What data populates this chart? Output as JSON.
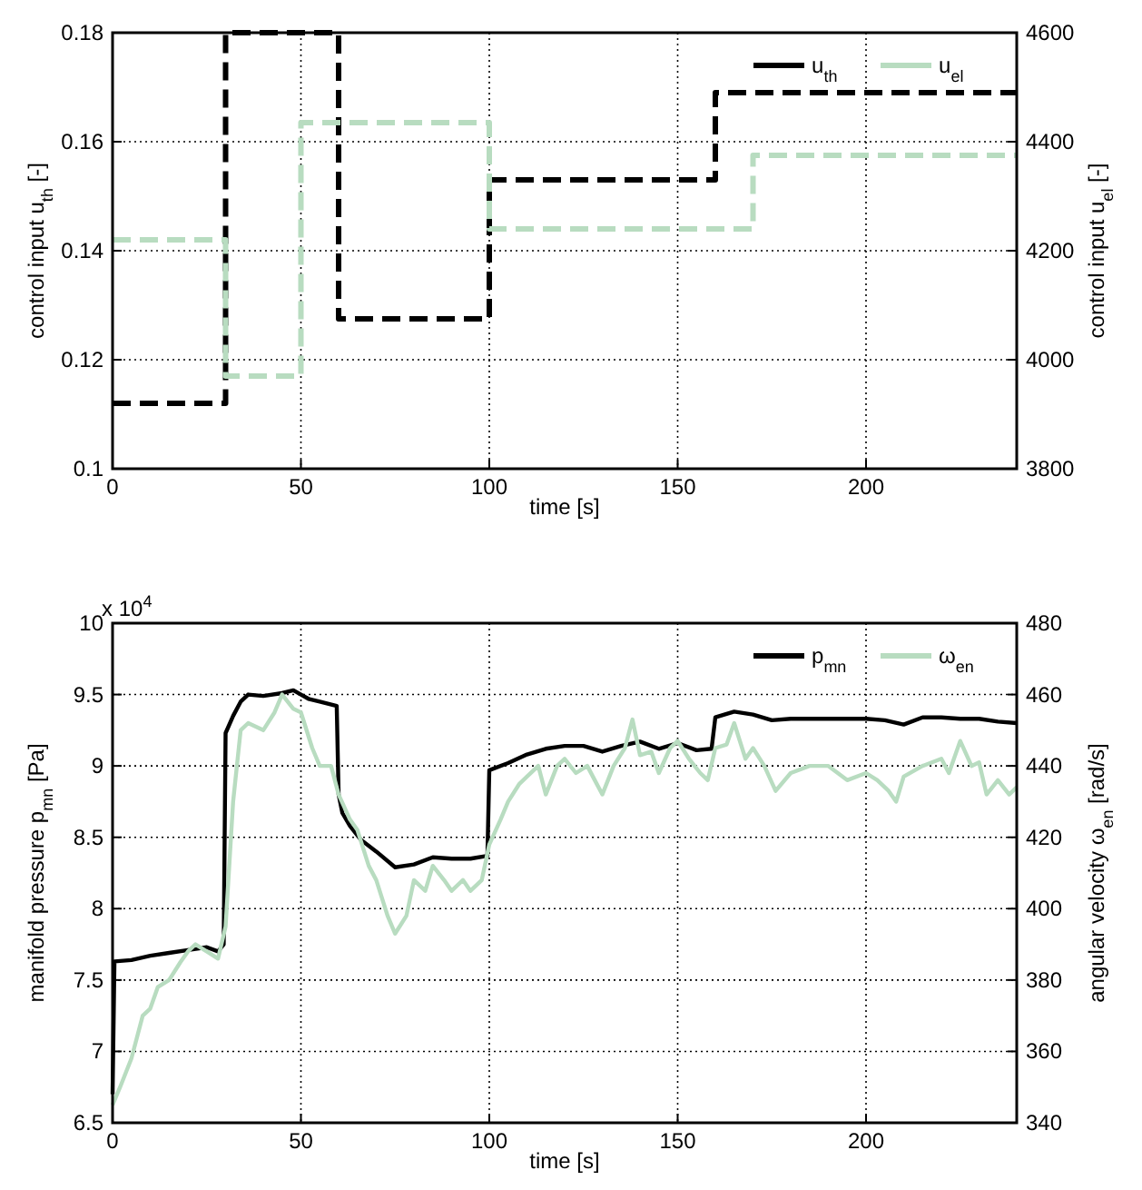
{
  "chart_data": [
    {
      "type": "step",
      "xlabel": "time [s]",
      "ylabel": "control input u$_{th}$ [-]",
      "y2label": "control input u$_{el}$ [-]",
      "xlim": [
        0,
        240
      ],
      "xticks": [
        0,
        50,
        100,
        150,
        200
      ],
      "ylim": [
        0.1,
        0.18
      ],
      "yticks": [
        0.1,
        0.12,
        0.14,
        0.16,
        0.18
      ],
      "y2lim": [
        3800,
        4600
      ],
      "y2ticks": [
        3800,
        4000,
        4200,
        4400,
        4600
      ],
      "grid": true,
      "legend": "top right",
      "series": [
        {
          "name": "u$_{th}$",
          "color": "#000000",
          "line_style": "dashed",
          "x": [
            0,
            30,
            60,
            100,
            160,
            240
          ],
          "values": [
            0.112,
            0.18,
            0.1275,
            0.153,
            0.169,
            0.169
          ]
        },
        {
          "name": "u$_{el}$",
          "color": "#b8dcc0",
          "line_style": "dashed",
          "axis": "y2",
          "x": [
            0,
            30,
            50,
            100,
            170,
            240
          ],
          "values": [
            4220,
            3970,
            4435,
            4240,
            4375,
            4375
          ]
        }
      ]
    },
    {
      "type": "line",
      "xlabel": "time [s]",
      "ylabel": "manifold pressure p$_{mn}$ [Pa]",
      "y2label": "angular velocity ω$_{en}$ [rad/s]",
      "annotations": [
        "x 10$^{4}$"
      ],
      "xlim": [
        0,
        240
      ],
      "xticks": [
        0,
        50,
        100,
        150,
        200
      ],
      "ylim": [
        6.5,
        10
      ],
      "yticks": [
        6.5,
        7,
        7.5,
        8,
        8.5,
        9,
        9.5,
        10
      ],
      "y2lim": [
        340,
        480
      ],
      "y2ticks": [
        340,
        360,
        380,
        400,
        420,
        440,
        460,
        480
      ],
      "grid": true,
      "legend": "top right",
      "series": [
        {
          "name": "p$_{mn}$",
          "color": "#000000",
          "line_style": "solid",
          "x": [
            0,
            0.5,
            5,
            10,
            15,
            20,
            25,
            28,
            29.5,
            30,
            32,
            34,
            36,
            40,
            45,
            48,
            50,
            52,
            55,
            59.5,
            60,
            61,
            63,
            66,
            70,
            75,
            80,
            85,
            90,
            95,
            99.5,
            100,
            105,
            110,
            115,
            120,
            125,
            130,
            135,
            140,
            145,
            150,
            155,
            159,
            160,
            165,
            170,
            175,
            180,
            190,
            200,
            205,
            210,
            215,
            220,
            225,
            230,
            235,
            240
          ],
          "values": [
            6.7,
            7.63,
            7.64,
            7.67,
            7.69,
            7.71,
            7.73,
            7.7,
            7.75,
            9.23,
            9.35,
            9.45,
            9.5,
            9.49,
            9.51,
            9.53,
            9.5,
            9.47,
            9.45,
            9.42,
            8.8,
            8.67,
            8.58,
            8.48,
            8.4,
            8.29,
            8.31,
            8.36,
            8.35,
            8.35,
            8.37,
            8.97,
            9.02,
            9.08,
            9.12,
            9.14,
            9.14,
            9.1,
            9.14,
            9.17,
            9.12,
            9.16,
            9.11,
            9.12,
            9.34,
            9.38,
            9.36,
            9.32,
            9.33,
            9.33,
            9.33,
            9.32,
            9.29,
            9.34,
            9.34,
            9.33,
            9.33,
            9.31,
            9.3
          ]
        },
        {
          "name": "ω$_{en}$",
          "color": "#b8dcc0",
          "line_style": "solid",
          "axis": "y2",
          "x": [
            0,
            2,
            5,
            8,
            10,
            12,
            15,
            18,
            20,
            22,
            25,
            28,
            30,
            32,
            34,
            36,
            40,
            43,
            45,
            48,
            50,
            53,
            55,
            58,
            60,
            63,
            65,
            68,
            70,
            73,
            75,
            78,
            80,
            83,
            85,
            88,
            90,
            93,
            95,
            98,
            100,
            103,
            105,
            108,
            110,
            113,
            115,
            118,
            120,
            123,
            126,
            128,
            130,
            133,
            136,
            138,
            140,
            143,
            145,
            148,
            150,
            153,
            156,
            158,
            160,
            163,
            165,
            168,
            170,
            173,
            176,
            180,
            185,
            190,
            195,
            200,
            203,
            206,
            208,
            210,
            215,
            220,
            222,
            225,
            228,
            230,
            232,
            235,
            238,
            240
          ],
          "values": [
            345,
            350,
            358,
            370,
            372,
            378,
            380,
            385,
            388,
            390,
            388,
            386,
            395,
            430,
            450,
            452,
            450,
            455,
            460,
            456,
            455,
            445,
            440,
            440,
            432,
            425,
            422,
            412,
            408,
            398,
            393,
            398,
            408,
            405,
            412,
            408,
            405,
            408,
            405,
            408,
            418,
            425,
            430,
            435,
            437,
            440,
            432,
            440,
            442,
            438,
            440,
            436,
            432,
            440,
            445,
            453,
            443,
            444,
            438,
            445,
            447,
            442,
            438,
            436,
            445,
            446,
            452,
            442,
            445,
            440,
            433,
            438,
            440,
            440,
            436,
            438,
            436,
            433,
            430,
            437,
            440,
            442,
            438,
            447,
            440,
            441,
            432,
            436,
            432,
            434
          ]
        }
      ]
    }
  ]
}
